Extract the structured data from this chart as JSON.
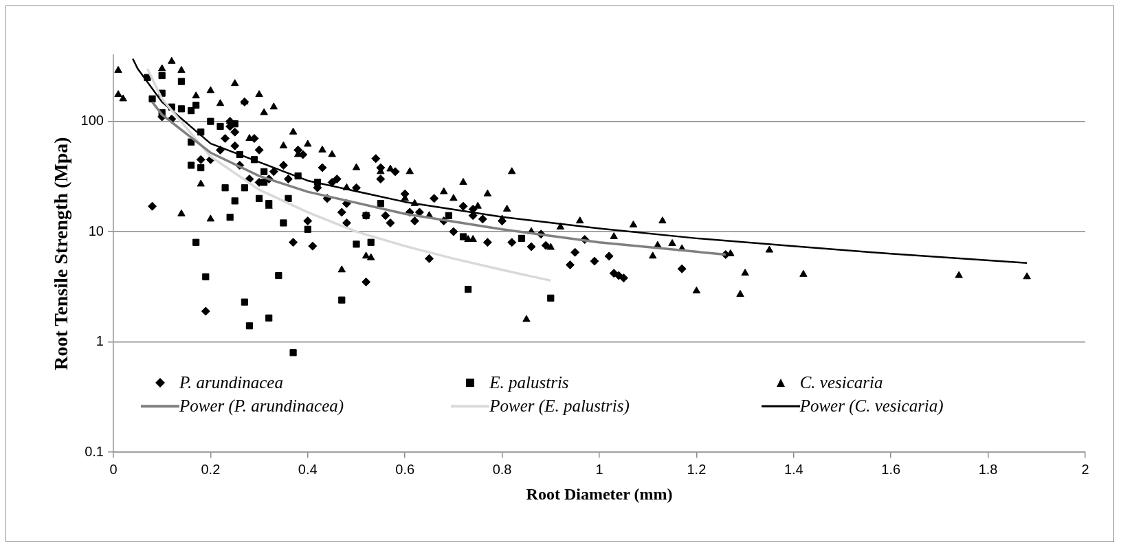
{
  "chart_data": {
    "type": "scatter",
    "xlabel": "Root Diameter (mm)",
    "ylabel": "Root Tensile Strength (Mpa)",
    "log": "y",
    "grid": "y",
    "legend": "bottom",
    "xlim": [
      0,
      2
    ],
    "xticks": [
      0,
      0.2,
      0.4,
      0.6,
      0.8,
      1,
      1.2,
      1.4,
      1.6,
      1.8,
      2
    ],
    "ylim": [
      0.1,
      400
    ],
    "yticks": [
      0.1,
      1,
      10,
      100
    ],
    "series": [
      {
        "name": "P. arundinacea",
        "type": "scatter",
        "marker": "diamond",
        "color": "#000000",
        "x": [
          0.08,
          0.19,
          0.1,
          0.12,
          0.18,
          0.2,
          0.22,
          0.23,
          0.24,
          0.24,
          0.25,
          0.25,
          0.26,
          0.27,
          0.28,
          0.29,
          0.3,
          0.3,
          0.32,
          0.33,
          0.35,
          0.36,
          0.37,
          0.38,
          0.39,
          0.4,
          0.41,
          0.42,
          0.43,
          0.44,
          0.45,
          0.46,
          0.47,
          0.48,
          0.48,
          0.5,
          0.52,
          0.52,
          0.54,
          0.55,
          0.55,
          0.56,
          0.57,
          0.58,
          0.6,
          0.61,
          0.62,
          0.65,
          0.66,
          0.68,
          0.7,
          0.72,
          0.74,
          0.76,
          0.77,
          0.8,
          0.82,
          0.86,
          0.88,
          0.89,
          0.94,
          0.95,
          0.97,
          0.99,
          1.02,
          1.03,
          1.04,
          1.05,
          1.17,
          1.26,
          0.63,
          0.74
        ],
        "values": [
          17,
          1.9,
          110,
          105,
          45,
          45,
          55,
          70,
          100,
          90,
          80,
          60,
          40,
          150,
          30,
          70,
          55,
          28,
          30,
          35,
          40,
          30,
          8,
          55,
          50,
          12.5,
          7.4,
          25,
          38,
          20,
          28,
          30,
          15,
          18,
          12,
          25,
          14,
          3.5,
          46,
          38,
          30,
          14,
          12,
          35,
          22,
          15,
          12.5,
          5.7,
          20,
          12.5,
          10,
          17,
          16,
          13,
          8,
          12.5,
          8,
          7.3,
          9.5,
          7.5,
          5,
          6.5,
          8.5,
          5.4,
          6,
          4.2,
          4,
          3.8,
          4.6,
          6.2,
          15,
          14
        ]
      },
      {
        "name": "E. palustris",
        "type": "scatter",
        "marker": "square",
        "color": "#000000",
        "x": [
          0.07,
          0.08,
          0.1,
          0.1,
          0.1,
          0.12,
          0.14,
          0.14,
          0.16,
          0.17,
          0.16,
          0.16,
          0.17,
          0.18,
          0.18,
          0.19,
          0.2,
          0.22,
          0.23,
          0.24,
          0.25,
          0.25,
          0.26,
          0.27,
          0.28,
          0.27,
          0.29,
          0.3,
          0.31,
          0.32,
          0.32,
          0.34,
          0.35,
          0.36,
          0.37,
          0.38,
          0.4,
          0.42,
          0.47,
          0.5,
          0.52,
          0.53,
          0.55,
          0.69,
          0.72,
          0.73,
          0.84,
          0.9,
          0.31
        ],
        "values": [
          250,
          160,
          260,
          180,
          120,
          135,
          230,
          130,
          125,
          140,
          65,
          40,
          8,
          80,
          38,
          3.9,
          100,
          90,
          25,
          13.5,
          95,
          19,
          50,
          2.3,
          1.4,
          25,
          45,
          20,
          35,
          1.65,
          18,
          4,
          12,
          20,
          0.8,
          32,
          10.5,
          28,
          2.4,
          7.7,
          14,
          8,
          18,
          14,
          9,
          3,
          8.7,
          2.5,
          28
        ]
      },
      {
        "name": "C. vesicaria",
        "type": "scatter",
        "marker": "triangle",
        "color": "#000000",
        "x": [
          0.01,
          0.01,
          0.02,
          0.1,
          0.12,
          0.14,
          0.14,
          0.17,
          0.18,
          0.2,
          0.2,
          0.22,
          0.24,
          0.25,
          0.27,
          0.28,
          0.3,
          0.31,
          0.32,
          0.33,
          0.35,
          0.37,
          0.38,
          0.4,
          0.43,
          0.45,
          0.47,
          0.48,
          0.5,
          0.52,
          0.53,
          0.55,
          0.57,
          0.6,
          0.61,
          0.62,
          0.65,
          0.68,
          0.7,
          0.72,
          0.73,
          0.74,
          0.75,
          0.77,
          0.8,
          0.81,
          0.82,
          0.85,
          0.86,
          0.9,
          0.92,
          0.96,
          1.03,
          1.07,
          1.11,
          1.12,
          1.13,
          1.15,
          1.17,
          1.2,
          1.27,
          1.29,
          1.3,
          1.35,
          1.42,
          1.74,
          1.88
        ],
        "values": [
          290,
          175,
          160,
          300,
          350,
          290,
          14.5,
          170,
          27,
          190,
          13,
          145,
          100,
          220,
          150,
          70,
          175,
          120,
          17,
          135,
          60,
          80,
          50,
          62,
          55,
          50,
          4.5,
          25,
          38,
          6,
          5.8,
          35,
          37,
          20,
          35,
          18,
          14,
          23,
          20,
          28,
          8.5,
          8.5,
          17,
          22,
          13,
          16,
          35,
          1.6,
          10,
          7.2,
          11,
          12.5,
          9,
          11.5,
          6,
          7.5,
          12.5,
          7.8,
          7,
          2.9,
          6.3,
          2.7,
          4.2,
          6.8,
          4.1,
          4,
          3.9
        ]
      },
      {
        "name": "Power (P. arundinacea)",
        "type": "line",
        "marker": "none",
        "color": "#808080",
        "x": [
          0.08,
          0.1,
          0.2,
          0.3,
          0.4,
          0.6,
          0.8,
          1,
          1.26
        ],
        "values": [
          150,
          115,
          52,
          32,
          23,
          14.5,
          10.5,
          8,
          6.2
        ]
      },
      {
        "name": "Power (E. palustris)",
        "type": "line",
        "marker": "none",
        "color": "#d9d9d9",
        "x": [
          0.07,
          0.1,
          0.2,
          0.3,
          0.4,
          0.5,
          0.6,
          0.7,
          0.8,
          0.9
        ],
        "values": [
          300,
          160,
          48,
          24,
          15,
          10,
          7.4,
          5.7,
          4.5,
          3.6
        ]
      },
      {
        "name": "Power (C. vesicaria)",
        "type": "line",
        "marker": "none",
        "color": "#000000",
        "x": [
          0.04,
          0.05,
          0.1,
          0.2,
          0.4,
          0.6,
          0.8,
          1,
          1.2,
          1.4,
          1.6,
          1.88
        ],
        "values": [
          370,
          300,
          150,
          63,
          29,
          18.6,
          13.6,
          10.7,
          8.7,
          7.4,
          6.3,
          5.2
        ]
      }
    ]
  }
}
